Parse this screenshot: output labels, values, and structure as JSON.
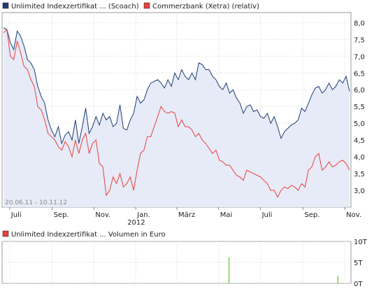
{
  "chart_data": [
    {
      "type": "line",
      "legend_placement": "top-left",
      "series": [
        {
          "name": "Unlimited Indexzertifikat ... (Scoach)",
          "color": "#1f3c73",
          "fill": "#e6ebf7",
          "values": [
            7.85,
            7.8,
            7.4,
            7.2,
            7.75,
            7.6,
            7.3,
            6.9,
            6.8,
            6.6,
            6.1,
            5.8,
            5.6,
            5.1,
            4.8,
            4.6,
            4.9,
            4.4,
            4.65,
            4.75,
            4.5,
            5.1,
            4.4,
            4.9,
            5.45,
            4.7,
            4.9,
            5.2,
            4.95,
            5.3,
            5.1,
            5.2,
            4.9,
            5.0,
            5.55,
            4.85,
            4.8,
            5.1,
            5.3,
            5.8,
            5.6,
            5.7,
            6.0,
            6.2,
            6.25,
            6.3,
            6.2,
            6.05,
            6.3,
            6.1,
            6.5,
            6.3,
            6.6,
            6.4,
            6.3,
            6.5,
            6.3,
            6.8,
            6.75,
            6.6,
            6.6,
            6.4,
            6.3,
            6.1,
            6.0,
            6.2,
            5.9,
            6.0,
            5.75,
            5.6,
            5.3,
            5.5,
            5.55,
            5.35,
            5.4,
            5.2,
            5.15,
            5.3,
            5.0,
            5.2,
            4.9,
            4.55,
            4.75,
            4.85,
            4.95,
            5.0,
            5.1,
            5.45,
            5.35,
            5.6,
            5.85,
            6.05,
            6.1,
            5.9,
            6.0,
            6.2,
            6.0,
            6.1,
            6.3,
            6.2,
            6.4,
            5.95
          ]
        },
        {
          "name": "Commerzbank (Xetra) (relativ)",
          "color": "#e8403b",
          "values": [
            7.7,
            7.8,
            7.0,
            6.9,
            7.45,
            7.1,
            6.7,
            6.6,
            6.3,
            6.1,
            5.5,
            5.4,
            5.1,
            4.7,
            4.6,
            4.5,
            4.3,
            4.2,
            4.45,
            4.3,
            4.0,
            4.5,
            4.1,
            4.5,
            4.7,
            4.1,
            4.4,
            4.5,
            3.8,
            3.7,
            2.85,
            3.0,
            3.4,
            3.2,
            3.5,
            3.1,
            3.2,
            3.4,
            3.0,
            3.6,
            4.1,
            4.2,
            4.6,
            4.6,
            4.9,
            5.2,
            5.5,
            5.35,
            5.3,
            5.35,
            5.3,
            4.9,
            5.1,
            4.9,
            4.9,
            4.8,
            4.6,
            4.7,
            4.5,
            4.4,
            4.25,
            4.1,
            4.2,
            3.9,
            3.85,
            3.75,
            3.75,
            3.6,
            3.45,
            3.4,
            3.3,
            3.6,
            3.55,
            3.5,
            3.45,
            3.4,
            3.3,
            3.2,
            3.0,
            3.0,
            2.8,
            3.0,
            3.1,
            3.05,
            3.15,
            3.1,
            3.0,
            3.2,
            3.1,
            3.6,
            3.7,
            4.0,
            4.1,
            3.6,
            3.7,
            3.85,
            3.7,
            3.75,
            3.85,
            3.9,
            3.8,
            3.6
          ]
        }
      ],
      "ylim": [
        2.5,
        8.3
      ],
      "y_ticks": [
        "8,0",
        "7,5",
        "7,0",
        "6,5",
        "6,0",
        "5,5",
        "5,0",
        "4,5",
        "4,0",
        "3,5",
        "3,0"
      ],
      "y_tick_values": [
        8.0,
        7.5,
        7.0,
        6.5,
        6.0,
        5.5,
        5.0,
        4.5,
        4.0,
        3.5,
        3.0
      ],
      "x_range": [
        "2011-06-20",
        "2012-11-10"
      ],
      "x_ticks": [
        {
          "label": "Juli",
          "date": "2011-07-01"
        },
        {
          "label": "Sep.",
          "date": "2011-09-01"
        },
        {
          "label": "Nov.",
          "date": "2011-11-01"
        },
        {
          "label": "Jan.",
          "date": "2012-01-01"
        },
        {
          "label": "März",
          "date": "2012-03-01"
        },
        {
          "label": "Mai",
          "date": "2012-05-01"
        },
        {
          "label": "Juli",
          "date": "2012-07-01"
        },
        {
          "label": "Sep.",
          "date": "2012-09-01"
        },
        {
          "label": "Nov.",
          "date": "2012-11-01"
        }
      ],
      "year_label": "2012",
      "date_range_label": "20.06.11 - 10.11.12",
      "grid": true
    },
    {
      "type": "bar",
      "legend": "Unlimited Indexzertifikat ... Volumen in Euro",
      "color": "#7dcc55",
      "y_ticks": [
        "10T",
        "5T",
        "0T"
      ],
      "ylim": [
        0,
        10
      ],
      "bars": [
        {
          "date": "2012-05-16",
          "value": 6.2
        },
        {
          "date": "2012-10-22",
          "value": 1.8
        }
      ]
    }
  ]
}
